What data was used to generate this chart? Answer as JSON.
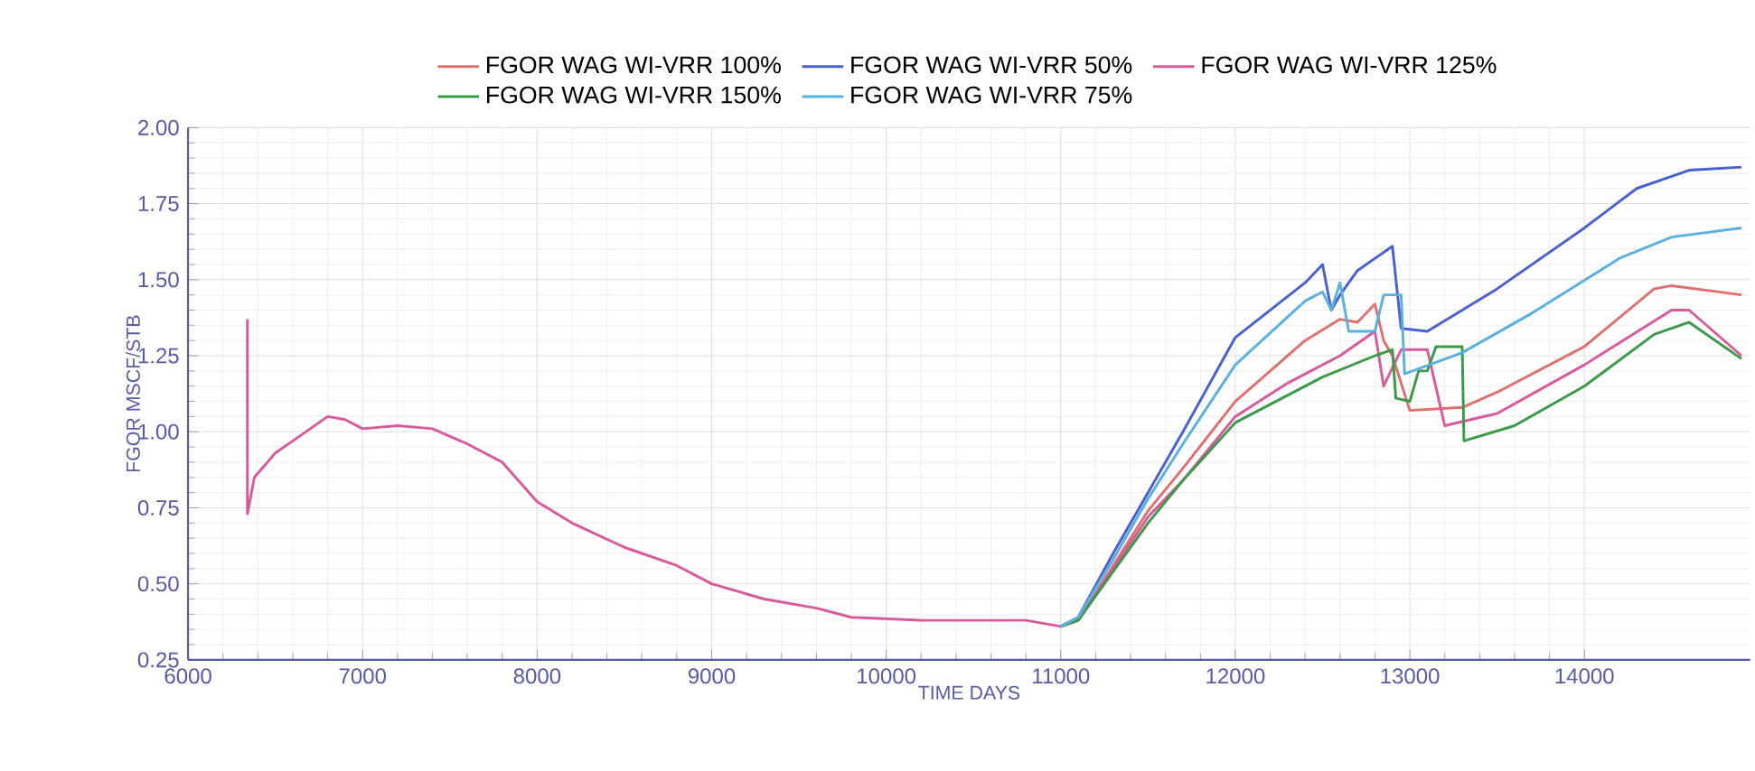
{
  "chart_data": {
    "type": "line",
    "xlabel": "TIME   DAYS",
    "ylabel": "FGOR   MSCF/STB",
    "xlim": [
      6000,
      14950
    ],
    "xticks": [
      6000,
      7000,
      8000,
      9000,
      10000,
      11000,
      12000,
      13000,
      14000
    ],
    "ylim": [
      0.25,
      2.0
    ],
    "yticks": [
      {
        "value": 0.25,
        "label": "0.25"
      },
      {
        "value": 0.5,
        "label": "0.50"
      },
      {
        "value": 0.75,
        "label": "0.75"
      },
      {
        "value": 1.0,
        "label": "1.00"
      },
      {
        "value": 1.25,
        "label": "1.25"
      },
      {
        "value": 1.5,
        "label": "1.50"
      },
      {
        "value": 1.75,
        "label": "1.75"
      },
      {
        "value": 2.0,
        "label": "2.00"
      }
    ],
    "grid": true,
    "legend": "top",
    "marker": "none",
    "line_style": "solid",
    "series": [
      {
        "name": "FGOR WAG WI-VRR 100%",
        "color": "#e07070",
        "x": [
          11000,
          11100,
          11300,
          11500,
          11700,
          12000,
          12400,
          12600,
          12700,
          12800,
          12850,
          12900,
          13000,
          13300,
          13500,
          14000,
          14400,
          14500,
          14900
        ],
        "values": [
          0.36,
          0.38,
          0.56,
          0.74,
          0.88,
          1.1,
          1.3,
          1.37,
          1.36,
          1.42,
          1.3,
          1.25,
          1.07,
          1.08,
          1.13,
          1.28,
          1.47,
          1.48,
          1.45
        ]
      },
      {
        "name": "FGOR WAG WI-VRR 50%",
        "color": "#4a60d0",
        "x": [
          11000,
          11100,
          11300,
          11500,
          11700,
          12000,
          12400,
          12500,
          12550,
          12600,
          12700,
          12900,
          12950,
          13100,
          13500,
          14000,
          14300,
          14600,
          14900
        ],
        "values": [
          0.36,
          0.39,
          0.6,
          0.8,
          1.0,
          1.31,
          1.49,
          1.55,
          1.4,
          1.45,
          1.53,
          1.61,
          1.34,
          1.33,
          1.47,
          1.67,
          1.8,
          1.86,
          1.87
        ]
      },
      {
        "name": "FGOR WAG WI-VRR 125%",
        "color": "#d85a9a",
        "x": [
          6340,
          6340,
          6380,
          6500,
          6600,
          6800,
          6900,
          7000,
          7200,
          7400,
          7600,
          7800,
          8000,
          8200,
          8500,
          8800,
          9000,
          9300,
          9600,
          9800,
          10200,
          10800,
          11000,
          11100,
          11300,
          11500,
          11700,
          12000,
          12300,
          12600,
          12800,
          12850,
          12950,
          13100,
          13200,
          13500,
          14000,
          14500,
          14600,
          14900
        ],
        "values": [
          1.37,
          0.73,
          0.85,
          0.93,
          0.97,
          1.05,
          1.04,
          1.01,
          1.02,
          1.01,
          0.96,
          0.9,
          0.77,
          0.7,
          0.62,
          0.56,
          0.5,
          0.45,
          0.42,
          0.39,
          0.38,
          0.38,
          0.36,
          0.38,
          0.55,
          0.72,
          0.84,
          1.05,
          1.16,
          1.25,
          1.33,
          1.15,
          1.27,
          1.27,
          1.02,
          1.06,
          1.22,
          1.4,
          1.4,
          1.25
        ]
      },
      {
        "name": "FGOR WAG WI-VRR 150%",
        "color": "#3a9a4a",
        "x": [
          11000,
          11100,
          11300,
          11500,
          11700,
          12000,
          12500,
          12800,
          12900,
          12920,
          13000,
          13050,
          13100,
          13150,
          13300,
          13310,
          13600,
          14000,
          14400,
          14600,
          14900
        ],
        "values": [
          0.36,
          0.38,
          0.54,
          0.7,
          0.84,
          1.03,
          1.18,
          1.25,
          1.27,
          1.11,
          1.1,
          1.2,
          1.2,
          1.28,
          1.28,
          0.97,
          1.02,
          1.15,
          1.32,
          1.36,
          1.24
        ]
      },
      {
        "name": "FGOR WAG WI-VRR 75%",
        "color": "#5ab0e0",
        "x": [
          11000,
          11100,
          11300,
          11500,
          11700,
          12000,
          12400,
          12500,
          12550,
          12600,
          12650,
          12800,
          12850,
          12950,
          12970,
          13300,
          13700,
          14200,
          14500,
          14900
        ],
        "values": [
          0.36,
          0.39,
          0.58,
          0.78,
          0.96,
          1.22,
          1.43,
          1.46,
          1.4,
          1.49,
          1.33,
          1.33,
          1.45,
          1.45,
          1.19,
          1.26,
          1.39,
          1.57,
          1.64,
          1.67
        ]
      }
    ]
  }
}
